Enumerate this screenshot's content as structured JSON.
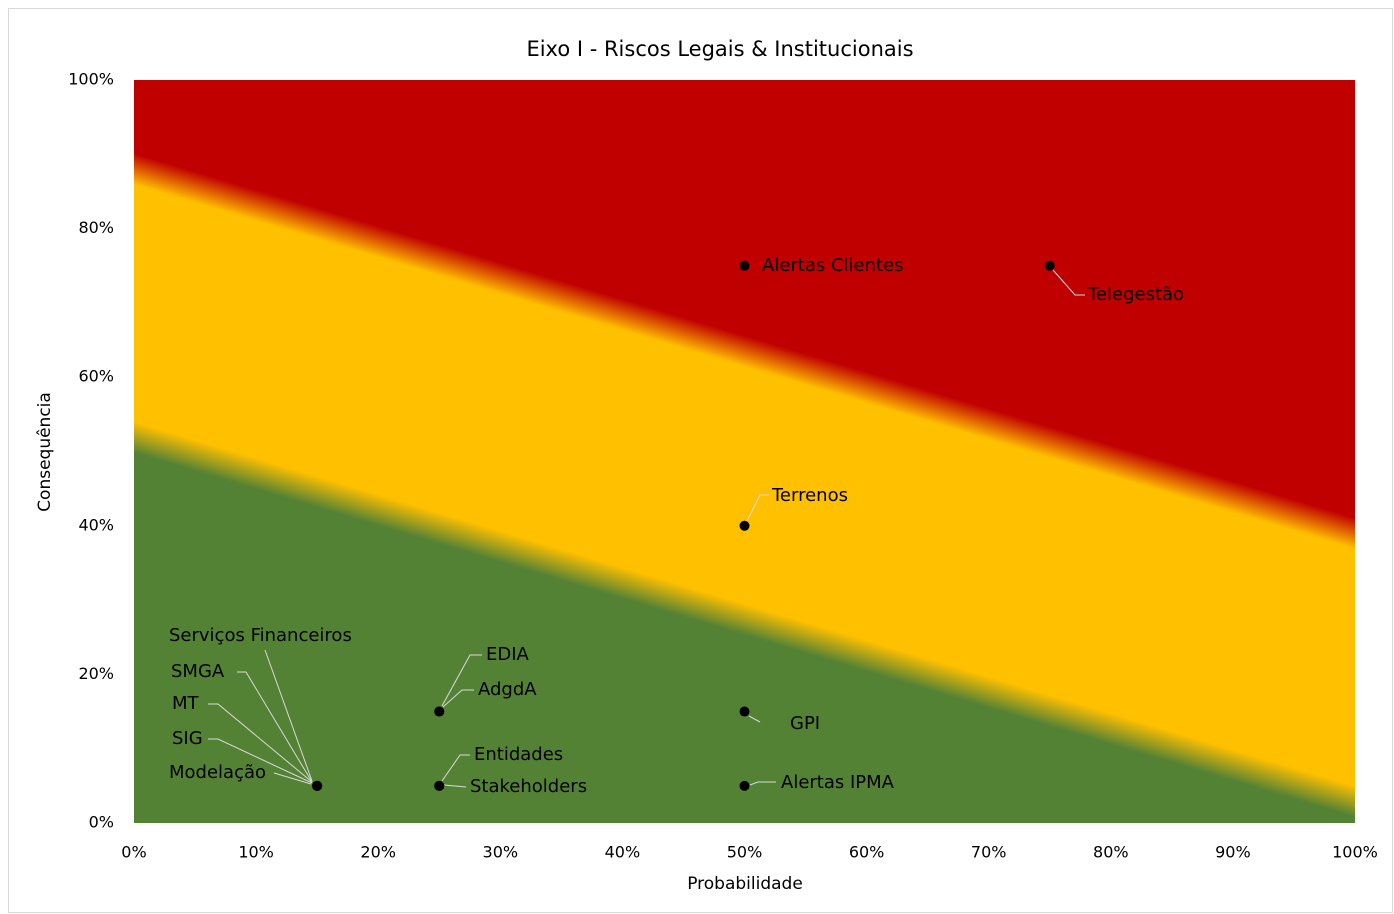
{
  "chart_data": {
    "type": "scatter",
    "title": "Eixo I - Riscos Legais & Institucionais",
    "x_label": "Probabilidade",
    "y_label": "Consequência",
    "labels": [
      "Alertas Clientes",
      "Telegestão",
      "Terrenos",
      "GPI",
      "Alertas IPMA",
      "EDIA",
      "AdgdA",
      "Entidades",
      "Stakeholders",
      "Serviços Financeiros",
      "SMGA",
      "MT",
      "SIG",
      "Modelação"
    ],
    "x": [
      50,
      75,
      50,
      50,
      50,
      25,
      25,
      25,
      25,
      15,
      15,
      15,
      15,
      15
    ],
    "y": [
      75,
      75,
      40,
      15,
      5,
      15,
      15,
      5,
      5,
      5,
      5,
      5,
      5,
      5
    ],
    "color": "#000000",
    "zone_colors": [
      "#548235",
      "#ffc000",
      "#c00000"
    ],
    "xlim": [
      0,
      100
    ],
    "ylim": [
      0,
      100
    ],
    "xticks": [
      {
        "value": 0,
        "label": "0%"
      },
      {
        "value": 10,
        "label": "10%"
      },
      {
        "value": 20,
        "label": "20%"
      },
      {
        "value": 30,
        "label": "30%"
      },
      {
        "value": 40,
        "label": "40%"
      },
      {
        "value": 50,
        "label": "50%"
      },
      {
        "value": 60,
        "label": "60%"
      },
      {
        "value": 70,
        "label": "70%"
      },
      {
        "value": 80,
        "label": "80%"
      },
      {
        "value": 90,
        "label": "90%"
      },
      {
        "value": 100,
        "label": "100%"
      }
    ],
    "yticks": [
      {
        "value": 0,
        "label": "0%"
      },
      {
        "value": 20,
        "label": "20%"
      },
      {
        "value": 40,
        "label": "40%"
      },
      {
        "value": 60,
        "label": "60%"
      },
      {
        "value": 80,
        "label": "80%"
      },
      {
        "value": 100,
        "label": "100%"
      }
    ]
  }
}
